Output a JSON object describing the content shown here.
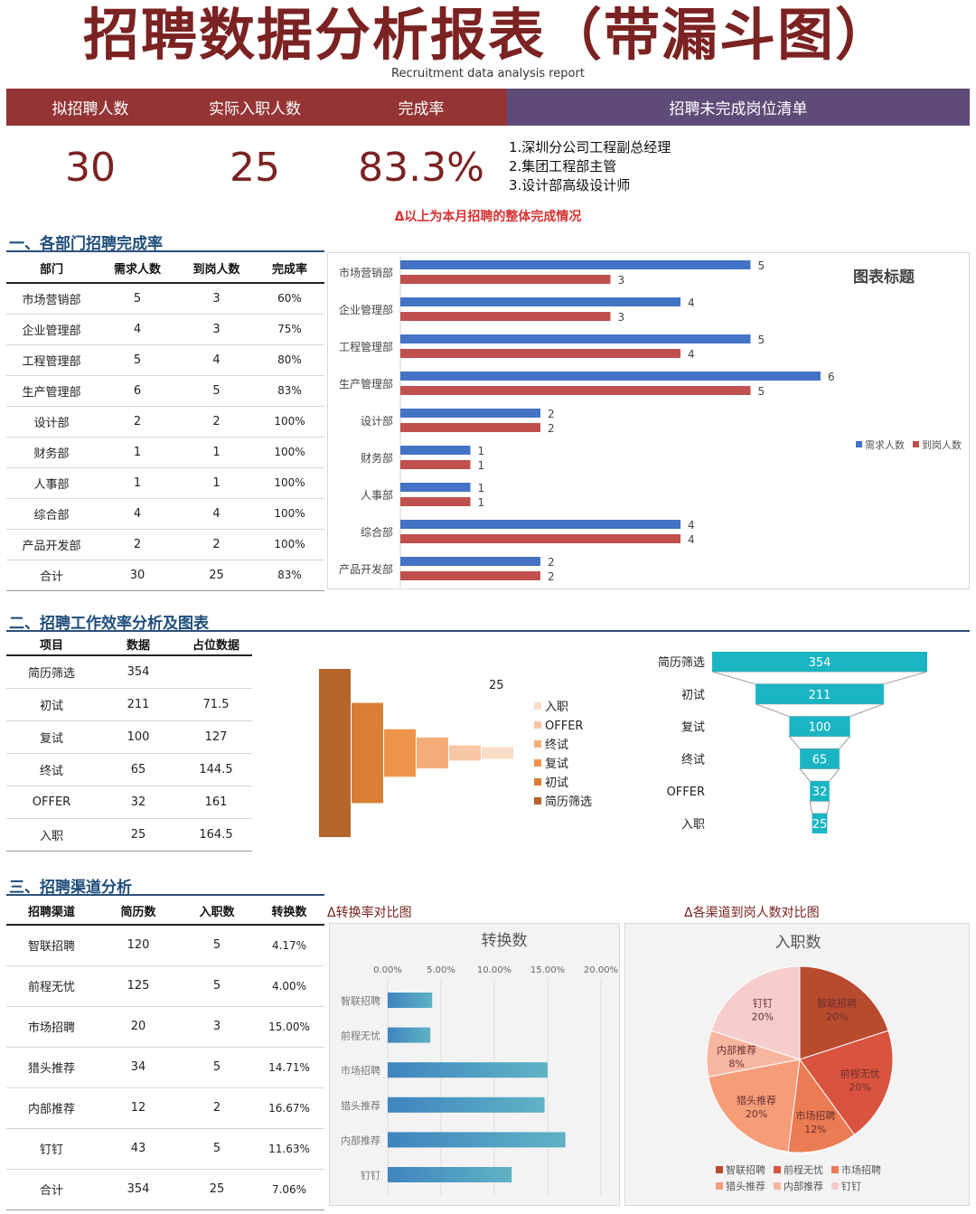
{
  "header": {
    "title": "招聘数据分析报表（带漏斗图）",
    "subtitle": "Recruitment data analysis report"
  },
  "kpi": {
    "heads": [
      "拟招聘人数",
      "实际入职人数",
      "完成率"
    ],
    "values": [
      "30",
      "25",
      "83.3%"
    ],
    "pending_head": "招聘未完成岗位清单",
    "pending_items": [
      "1.深圳分公司工程副总经理",
      "2.集团工程部主管",
      "3.设计部高级设计师"
    ],
    "note": "Δ以上为本月招聘的整体完成情况"
  },
  "section1": {
    "title": "一、各部门招聘完成率",
    "headers": [
      "部门",
      "需求人数",
      "到岗人数",
      "完成率"
    ],
    "rows": [
      [
        "市场营销部",
        "5",
        "3",
        "60%"
      ],
      [
        "企业管理部",
        "4",
        "3",
        "75%"
      ],
      [
        "工程管理部",
        "5",
        "4",
        "80%"
      ],
      [
        "生产管理部",
        "6",
        "5",
        "83%"
      ],
      [
        "设计部",
        "2",
        "2",
        "100%"
      ],
      [
        "财务部",
        "1",
        "1",
        "100%"
      ],
      [
        "人事部",
        "1",
        "1",
        "100%"
      ],
      [
        "综合部",
        "4",
        "4",
        "100%"
      ],
      [
        "产品开发部",
        "2",
        "2",
        "100%"
      ],
      [
        "合计",
        "30",
        "25",
        "83%"
      ]
    ]
  },
  "section2": {
    "title": "二、招聘工作效率分析及图表",
    "headers": [
      "项目",
      "数据",
      "占位数据"
    ],
    "rows": [
      [
        "简历筛选",
        "354",
        ""
      ],
      [
        "初试",
        "211",
        "71.5"
      ],
      [
        "复试",
        "100",
        "127"
      ],
      [
        "终试",
        "65",
        "144.5"
      ],
      [
        "OFFER",
        "32",
        "161"
      ],
      [
        "入职",
        "25",
        "164.5"
      ]
    ]
  },
  "section3": {
    "title": "三、招聘渠道分析",
    "headers": [
      "招聘渠道",
      "简历数",
      "入职数",
      "转换数"
    ],
    "rows": [
      [
        "智联招聘",
        "120",
        "5",
        "4.17%"
      ],
      [
        "前程无忧",
        "125",
        "5",
        "4.00%"
      ],
      [
        "市场招聘",
        "20",
        "3",
        "15.00%"
      ],
      [
        "猎头推荐",
        "34",
        "5",
        "14.71%"
      ],
      [
        "内部推荐",
        "12",
        "2",
        "16.67%"
      ],
      [
        "钉钉",
        "43",
        "5",
        "11.63%"
      ],
      [
        "合计",
        "354",
        "25",
        "7.06%"
      ]
    ],
    "caption_left": "Δ转换率对比图",
    "caption_right": "Δ各渠道到岗人数对比图"
  },
  "chart_data": [
    {
      "type": "bar",
      "orientation": "horizontal",
      "title": "图表标题",
      "categories": [
        "市场营销部",
        "企业管理部",
        "工程管理部",
        "生产管理部",
        "设计部",
        "财务部",
        "人事部",
        "综合部",
        "产品开发部"
      ],
      "series": [
        {
          "name": "需求人数",
          "values": [
            5,
            4,
            5,
            6,
            2,
            1,
            1,
            4,
            2
          ],
          "color": "#4472c4"
        },
        {
          "name": "到岗人数",
          "values": [
            3,
            3,
            4,
            5,
            2,
            1,
            1,
            4,
            2
          ],
          "color": "#c0504d"
        }
      ],
      "xlim": [
        0,
        6.5
      ],
      "legend": "right"
    },
    {
      "type": "bar",
      "subtype": "waterfall",
      "categories": [
        "简历筛选",
        "初试",
        "复试",
        "终试",
        "OFFER",
        "入职"
      ],
      "values": [
        354,
        211,
        100,
        65,
        32,
        25
      ],
      "offsets": [
        0,
        71.5,
        127,
        144.5,
        161,
        164.5
      ],
      "colors": [
        "#b5652a",
        "#d87e35",
        "#ee9448",
        "#f4ad78",
        "#f7c6a2",
        "#f9ddc8"
      ],
      "data_label": "25",
      "legend": "right"
    },
    {
      "type": "bar",
      "subtype": "funnel",
      "categories": [
        "简历筛选",
        "初试",
        "复试",
        "终试",
        "OFFER",
        "入职"
      ],
      "values": [
        354,
        211,
        100,
        65,
        32,
        25
      ],
      "color": "#19b5c3"
    },
    {
      "type": "bar",
      "orientation": "horizontal",
      "title": "转换数",
      "categories": [
        "智联招聘",
        "前程无忧",
        "市场招聘",
        "猎头推荐",
        "内部推荐",
        "钉钉"
      ],
      "values": [
        4.17,
        4.0,
        15.0,
        14.71,
        16.67,
        11.63
      ],
      "xlim": [
        0,
        20
      ],
      "xticks": [
        "0.00%",
        "5.00%",
        "10.00%",
        "15.00%",
        "20.00%"
      ],
      "grid": true
    },
    {
      "type": "pie",
      "title": "入职数",
      "slices": [
        {
          "label": "智联招聘",
          "value": 5,
          "pct": "20%",
          "color": "#b84a2e"
        },
        {
          "label": "前程无忧",
          "value": 5,
          "pct": "20%",
          "color": "#d9533e"
        },
        {
          "label": "市场招聘",
          "value": 3,
          "pct": "12%",
          "color": "#ea7b52"
        },
        {
          "label": "猎头推荐",
          "value": 5,
          "pct": "20%",
          "color": "#f59c78"
        },
        {
          "label": "内部推荐",
          "value": 2,
          "pct": "8%",
          "color": "#f7b6a0"
        },
        {
          "label": "钉钉",
          "value": 5,
          "pct": "20%",
          "color": "#f7cccc"
        }
      ],
      "legend": "bottom"
    }
  ]
}
